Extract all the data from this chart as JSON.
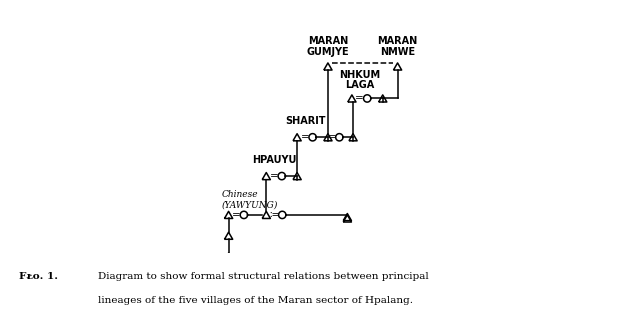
{
  "figsize": [
    6.33,
    3.24
  ],
  "dpi": 100,
  "background_color": "#ffffff",
  "caption_line1": "Fᴌᴏ. 1.   Diagram to show formal structural relations between principal",
  "caption_line2": "lineages of the five villages of the Maran sector of Hpalang.",
  "xlim": [
    0,
    10.0
  ],
  "ylim": [
    0.0,
    10.5
  ],
  "tri_s": 0.18,
  "circ_r": 0.16,
  "lw": 1.1
}
